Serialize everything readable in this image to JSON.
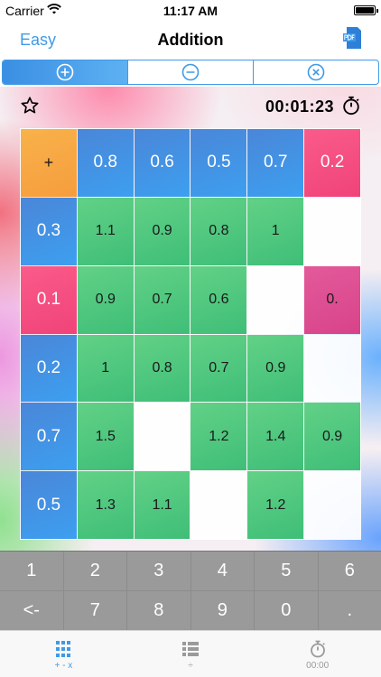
{
  "status_bar": {
    "carrier": "Carrier",
    "time": "11:17 AM"
  },
  "nav": {
    "left_label": "Easy",
    "title": "Addition"
  },
  "segments": [
    {
      "name": "plus",
      "active": true
    },
    {
      "name": "minus",
      "active": false
    },
    {
      "name": "times",
      "active": false
    }
  ],
  "game": {
    "timer": "00:01:23",
    "operator": "+",
    "columns": [
      "0.8",
      "0.6",
      "0.5",
      "0.7",
      "0.2"
    ],
    "column_colors": [
      "blue",
      "blue",
      "blue",
      "blue",
      "pink"
    ],
    "rows": [
      {
        "label": "0.3",
        "color": "blue",
        "cells": [
          {
            "v": "1.1",
            "s": "green"
          },
          {
            "v": "0.9",
            "s": "green"
          },
          {
            "v": "0.8",
            "s": "green"
          },
          {
            "v": "1",
            "s": "green"
          },
          {
            "v": "",
            "s": "empty"
          }
        ]
      },
      {
        "label": "0.1",
        "color": "pink",
        "cells": [
          {
            "v": "0.9",
            "s": "green"
          },
          {
            "v": "0.7",
            "s": "green"
          },
          {
            "v": "0.6",
            "s": "green"
          },
          {
            "v": "",
            "s": "empty"
          },
          {
            "v": "0.",
            "s": "magenta"
          }
        ]
      },
      {
        "label": "0.2",
        "color": "blue",
        "cells": [
          {
            "v": "1",
            "s": "green"
          },
          {
            "v": "0.8",
            "s": "green"
          },
          {
            "v": "0.7",
            "s": "green"
          },
          {
            "v": "0.9",
            "s": "green"
          },
          {
            "v": "",
            "s": "empty"
          }
        ]
      },
      {
        "label": "0.7",
        "color": "blue",
        "cells": [
          {
            "v": "1.5",
            "s": "green"
          },
          {
            "v": "",
            "s": "empty"
          },
          {
            "v": "1.2",
            "s": "green"
          },
          {
            "v": "1.4",
            "s": "green"
          },
          {
            "v": "0.9",
            "s": "green"
          }
        ]
      },
      {
        "label": "0.5",
        "color": "blue",
        "cells": [
          {
            "v": "1.3",
            "s": "green"
          },
          {
            "v": "1.1",
            "s": "green"
          },
          {
            "v": "",
            "s": "empty"
          },
          {
            "v": "1.2",
            "s": "green"
          },
          {
            "v": "",
            "s": "empty"
          }
        ]
      }
    ]
  },
  "keypad": [
    "1",
    "2",
    "3",
    "4",
    "5",
    "6",
    "<-",
    "7",
    "8",
    "9",
    "0",
    "."
  ],
  "tabs": [
    {
      "label": "+ - x",
      "icon": "grid-icon",
      "active": true
    },
    {
      "label": "÷",
      "icon": "list-icon",
      "active": false
    },
    {
      "label": "00:00",
      "icon": "stopwatch-icon",
      "active": false
    }
  ],
  "colors": {
    "accent": "#3f9ae6",
    "blue_cell": "#4a8fe0",
    "pink_cell": "#f5507f",
    "green_cell": "#52c77f",
    "operator_cell": "#f7a843"
  }
}
